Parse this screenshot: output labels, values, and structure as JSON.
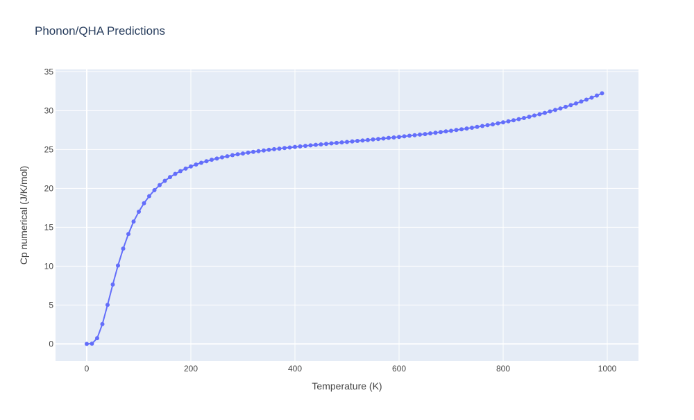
{
  "chart_data": {
    "type": "line",
    "title": "Phonon/QHA Predictions",
    "xlabel": "Temperature (K)",
    "ylabel": "Cp numerical (J/K/mol)",
    "xlim": [
      -60,
      1060
    ],
    "ylim": [
      -2.2,
      35.3
    ],
    "xticks": [
      0,
      200,
      400,
      600,
      800,
      1000
    ],
    "yticks": [
      0,
      5,
      10,
      15,
      20,
      25,
      30,
      35
    ],
    "grid": true,
    "legend": "none",
    "colors": {
      "series": "#636efa",
      "plot_bg": "#e5ecf6",
      "grid": "#ffffff"
    },
    "series": [
      {
        "mode": "lines+markers",
        "x": [
          0,
          10,
          20,
          30,
          40,
          50,
          60,
          70,
          80,
          90,
          100,
          110,
          120,
          130,
          140,
          150,
          160,
          170,
          180,
          190,
          200,
          210,
          220,
          230,
          240,
          250,
          260,
          270,
          280,
          290,
          300,
          310,
          320,
          330,
          340,
          350,
          360,
          370,
          380,
          390,
          400,
          410,
          420,
          430,
          440,
          450,
          460,
          470,
          480,
          490,
          500,
          510,
          520,
          530,
          540,
          550,
          560,
          570,
          580,
          590,
          600,
          610,
          620,
          630,
          640,
          650,
          660,
          670,
          680,
          690,
          700,
          710,
          720,
          730,
          740,
          750,
          760,
          770,
          780,
          790,
          800,
          810,
          820,
          830,
          840,
          850,
          860,
          870,
          880,
          890,
          900,
          910,
          920,
          930,
          940,
          950,
          960,
          970,
          980,
          990
        ],
        "y": [
          0.0,
          0.03,
          0.73,
          2.54,
          5.02,
          7.63,
          10.08,
          12.25,
          14.13,
          15.73,
          17.0,
          18.09,
          19.0,
          19.77,
          20.42,
          20.97,
          21.45,
          21.86,
          22.22,
          22.54,
          22.82,
          23.07,
          23.29,
          23.49,
          23.68,
          23.84,
          23.99,
          24.13,
          24.27,
          24.38,
          24.49,
          24.6,
          24.7,
          24.79,
          24.88,
          24.96,
          25.04,
          25.11,
          25.19,
          25.26,
          25.33,
          25.4,
          25.47,
          25.53,
          25.6,
          25.66,
          25.72,
          25.79,
          25.85,
          25.91,
          25.97,
          26.04,
          26.1,
          26.16,
          26.22,
          26.29,
          26.35,
          26.42,
          26.49,
          26.55,
          26.62,
          26.69,
          26.77,
          26.84,
          26.92,
          26.99,
          27.07,
          27.15,
          27.24,
          27.33,
          27.41,
          27.51,
          27.6,
          27.7,
          27.8,
          27.91,
          28.02,
          28.13,
          28.24,
          28.37,
          28.49,
          28.63,
          28.76,
          28.91,
          29.05,
          29.21,
          29.37,
          29.54,
          29.71,
          29.9,
          30.09,
          30.28,
          30.49,
          30.71,
          30.93,
          31.17,
          31.42,
          31.67,
          31.94,
          32.23
        ]
      }
    ]
  }
}
